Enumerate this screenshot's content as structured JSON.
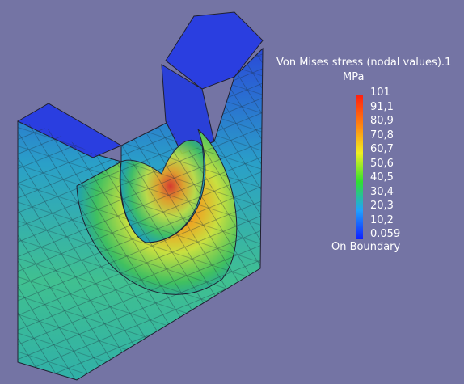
{
  "legend": {
    "title": "Von Mises stress (nodal values).1",
    "unit": "MPa",
    "labels": [
      "101",
      "91,1",
      "80,9",
      "70,8",
      "60,7",
      "50,6",
      "40,5",
      "30,4",
      "20,3",
      "10,2",
      "0.059"
    ],
    "footer": "On Boundary"
  }
}
